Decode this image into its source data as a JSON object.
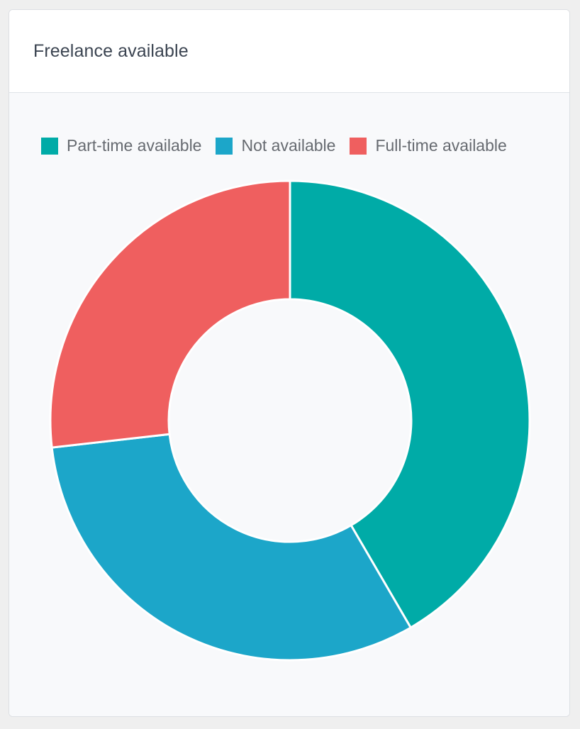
{
  "card": {
    "title": "Freelance available"
  },
  "chart_data": {
    "type": "pie",
    "donut": true,
    "title": "",
    "legend_position": "top",
    "categories": [
      "Part-time available",
      "Not available",
      "Full-time available"
    ],
    "values": [
      41.6,
      31.6,
      26.8
    ],
    "colors": [
      "#00aba7",
      "#1ca6c9",
      "#ef5f5f"
    ]
  }
}
